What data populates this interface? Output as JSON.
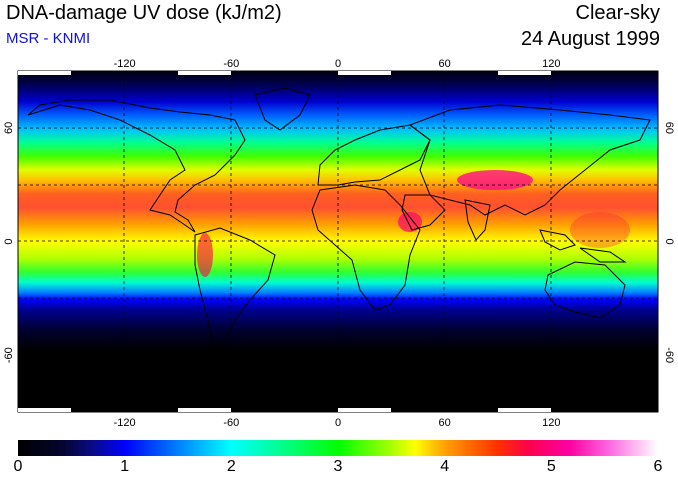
{
  "header": {
    "title": "DNA-damage UV dose (kJ/m2)",
    "subtitle": "MSR - KNMI",
    "condition": "Clear-sky",
    "date": "24 August 1999"
  },
  "map": {
    "lon_ticks": [
      -120,
      -60,
      0,
      60,
      120
    ],
    "lat_ticks": [
      60,
      0,
      -60
    ],
    "lon_labels": [
      "-120",
      "-60",
      "0",
      "60",
      "120"
    ],
    "lat_labels": [
      "60",
      "0",
      "-60"
    ]
  },
  "colorbar": {
    "labels": [
      "0",
      "1",
      "2",
      "3",
      "4",
      "5",
      "6"
    ]
  },
  "colors": {
    "ocean_land_high": "#ff2020",
    "low": "#000000"
  }
}
